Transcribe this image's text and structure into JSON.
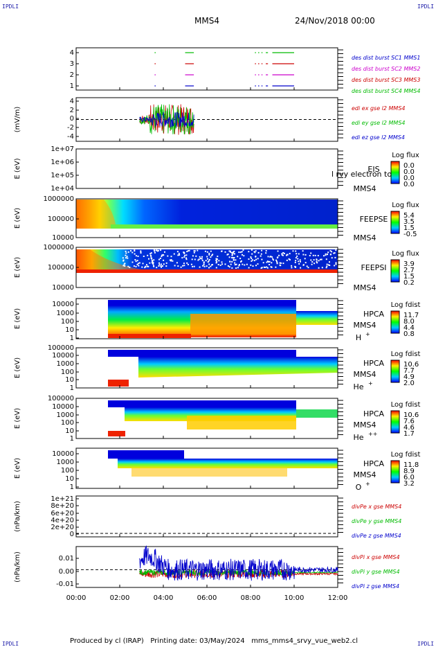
{
  "corners": {
    "tl": "IPDLI",
    "tr": "IPDLI",
    "bl": "IPDLI",
    "br": "IPDLI"
  },
  "header": {
    "spacecraft": "MMS4",
    "date": "24/Nov/2018 00:00"
  },
  "footer": {
    "text": "Produced by cl (IRAP)   Printing date: 03/May/2024   mms_mms4_srvy_vue_web2.cl"
  },
  "colors": {
    "blue": "#0000cc",
    "magenta": "#cc00cc",
    "red": "#cc0000",
    "green": "#00bb00"
  },
  "chart_data": {
    "type": "multi-panel time series / spectrograms",
    "x_tick_labels": [
      "00:00",
      "02:00",
      "04:00",
      "06:00",
      "08:00",
      "10:00",
      "12:00"
    ],
    "x_range_hours": [
      0,
      12
    ],
    "panels": [
      {
        "id": "burst",
        "ytick_labels": [
          "4",
          "3",
          "2",
          "1"
        ],
        "yvals": [
          4,
          3,
          2,
          1
        ],
        "series": [
          {
            "name": "des dist burst SC1 MMS1",
            "color": "#0000cc",
            "level": 1
          },
          {
            "name": "des dist burst SC2 MMS2",
            "color": "#cc00cc",
            "level": 2
          },
          {
            "name": "des dist burst SC3 MMS3",
            "color": "#cc0000",
            "level": 3
          },
          {
            "name": "des dist burst SC4 MMS4",
            "color": "#00bb00",
            "level": 4
          }
        ],
        "intervals_hours": [
          [
            3.6,
            3.65
          ],
          [
            5.0,
            5.4
          ],
          [
            8.2,
            8.25
          ],
          [
            8.35,
            8.4
          ],
          [
            8.5,
            8.55
          ],
          [
            8.7,
            8.8
          ],
          [
            9.0,
            10.0
          ]
        ]
      },
      {
        "id": "edi",
        "ylabel": "(mV/m)",
        "ytick_labels": [
          "4",
          "2",
          "0",
          "-2",
          "-4"
        ],
        "yvals": [
          4,
          2,
          0,
          -2,
          -4
        ],
        "ylim": [
          -4.5,
          4.5
        ],
        "series": [
          {
            "name": "edi ex gse l2 MMS4",
            "color": "#cc0000"
          },
          {
            "name": "edi ey gse l2 MMS4",
            "color": "#00bb00"
          },
          {
            "name": "edi ez gse l2 MMS4",
            "color": "#0000cc"
          }
        ],
        "active_hours": [
          2.9,
          5.4
        ]
      },
      {
        "id": "eis",
        "ylabel": "E (eV)",
        "ytick_labels": [
          "1e+07",
          "1e+06",
          "1e+05",
          "1e+04"
        ],
        "instrument": "EIS",
        "spacecraft": "MMS4",
        "overlay": "l rvy electron to",
        "colorbar": {
          "title": "Log flux",
          "labels": [
            "0.0",
            "0.0",
            "0.0",
            "0.0"
          ]
        }
      },
      {
        "id": "feepse",
        "ylabel": "E (eV)",
        "ytick_labels": [
          "1000000",
          "100000",
          "10000"
        ],
        "instrument": "FEEPSE",
        "spacecraft": "MMS4",
        "colorbar": {
          "title": "Log flux",
          "labels": [
            "5.4",
            "3.5",
            "1.5",
            "-0.5"
          ]
        }
      },
      {
        "id": "feepsi",
        "ylabel": "E (eV)",
        "ytick_labels": [
          "1000000",
          "100000",
          "10000"
        ],
        "instrument": "FEEPSI",
        "spacecraft": "MMS4",
        "colorbar": {
          "title": "Log flux",
          "labels": [
            "3.9",
            "2.7",
            "1.5",
            "0.2"
          ]
        }
      },
      {
        "id": "hpca_h",
        "ylabel": "E (eV)",
        "ytick_labels": [
          "10000",
          "1000",
          "100",
          "10",
          "1"
        ],
        "instrument": "HPCA",
        "spacecraft": "MMS4",
        "species": "H",
        "charge": "+",
        "colorbar": {
          "title": "Log fdist",
          "labels": [
            "11.7",
            "8.0",
            "4.4",
            "0.8"
          ]
        }
      },
      {
        "id": "hpca_he",
        "ylabel": "E (eV)",
        "ytick_labels": [
          "100000",
          "10000",
          "1000",
          "100",
          "10",
          "1"
        ],
        "instrument": "HPCA",
        "spacecraft": "MMS4",
        "species": "He",
        "charge": "+",
        "colorbar": {
          "title": "Log fdist",
          "labels": [
            "10.6",
            "7.7",
            "4.9",
            "2.0"
          ]
        }
      },
      {
        "id": "hpca_hepp",
        "ylabel": "E (eV)",
        "ytick_labels": [
          "100000",
          "10000",
          "1000",
          "100",
          "10",
          "1"
        ],
        "instrument": "HPCA",
        "spacecraft": "MMS4",
        "species": "He",
        "charge": "++",
        "colorbar": {
          "title": "Log fdist",
          "labels": [
            "10.6",
            "7.6",
            "4.6",
            "1.7"
          ]
        }
      },
      {
        "id": "hpca_o",
        "ylabel": "E (eV)",
        "ytick_labels": [
          "10000",
          "1000",
          "100",
          "10",
          "1"
        ],
        "instrument": "HPCA",
        "spacecraft": "MMS4",
        "species": "O",
        "charge": "+",
        "colorbar": {
          "title": "Log fdist",
          "labels": [
            "11.8",
            "8.9",
            "6.0",
            "3.2"
          ]
        }
      },
      {
        "id": "divpe",
        "ylabel": "(nPa/km)",
        "ytick_labels": [
          "1e+21",
          "8e+20",
          "6e+20",
          "4e+20",
          "2e+20",
          "0"
        ],
        "series": [
          {
            "name": "divPe x gse MMS4",
            "color": "#cc0000"
          },
          {
            "name": "divPe y gse MMS4",
            "color": "#00bb00"
          },
          {
            "name": "divPe z gse MMS4",
            "color": "#0000cc"
          }
        ]
      },
      {
        "id": "divpi",
        "ylabel": "(nPa/km)",
        "ytick_labels": [
          "0.01",
          "0.00",
          "-0.01"
        ],
        "yvals": [
          0.01,
          0.0,
          -0.01
        ],
        "ylim": [
          -0.013,
          0.017
        ],
        "series": [
          {
            "name": "divPi x gse MMS4",
            "color": "#cc0000"
          },
          {
            "name": "divPi y gse MMS4",
            "color": "#00bb00"
          },
          {
            "name": "divPi z gse MMS4",
            "color": "#0000cc"
          }
        ],
        "active_hours": [
          2.9,
          12.0
        ]
      }
    ]
  }
}
